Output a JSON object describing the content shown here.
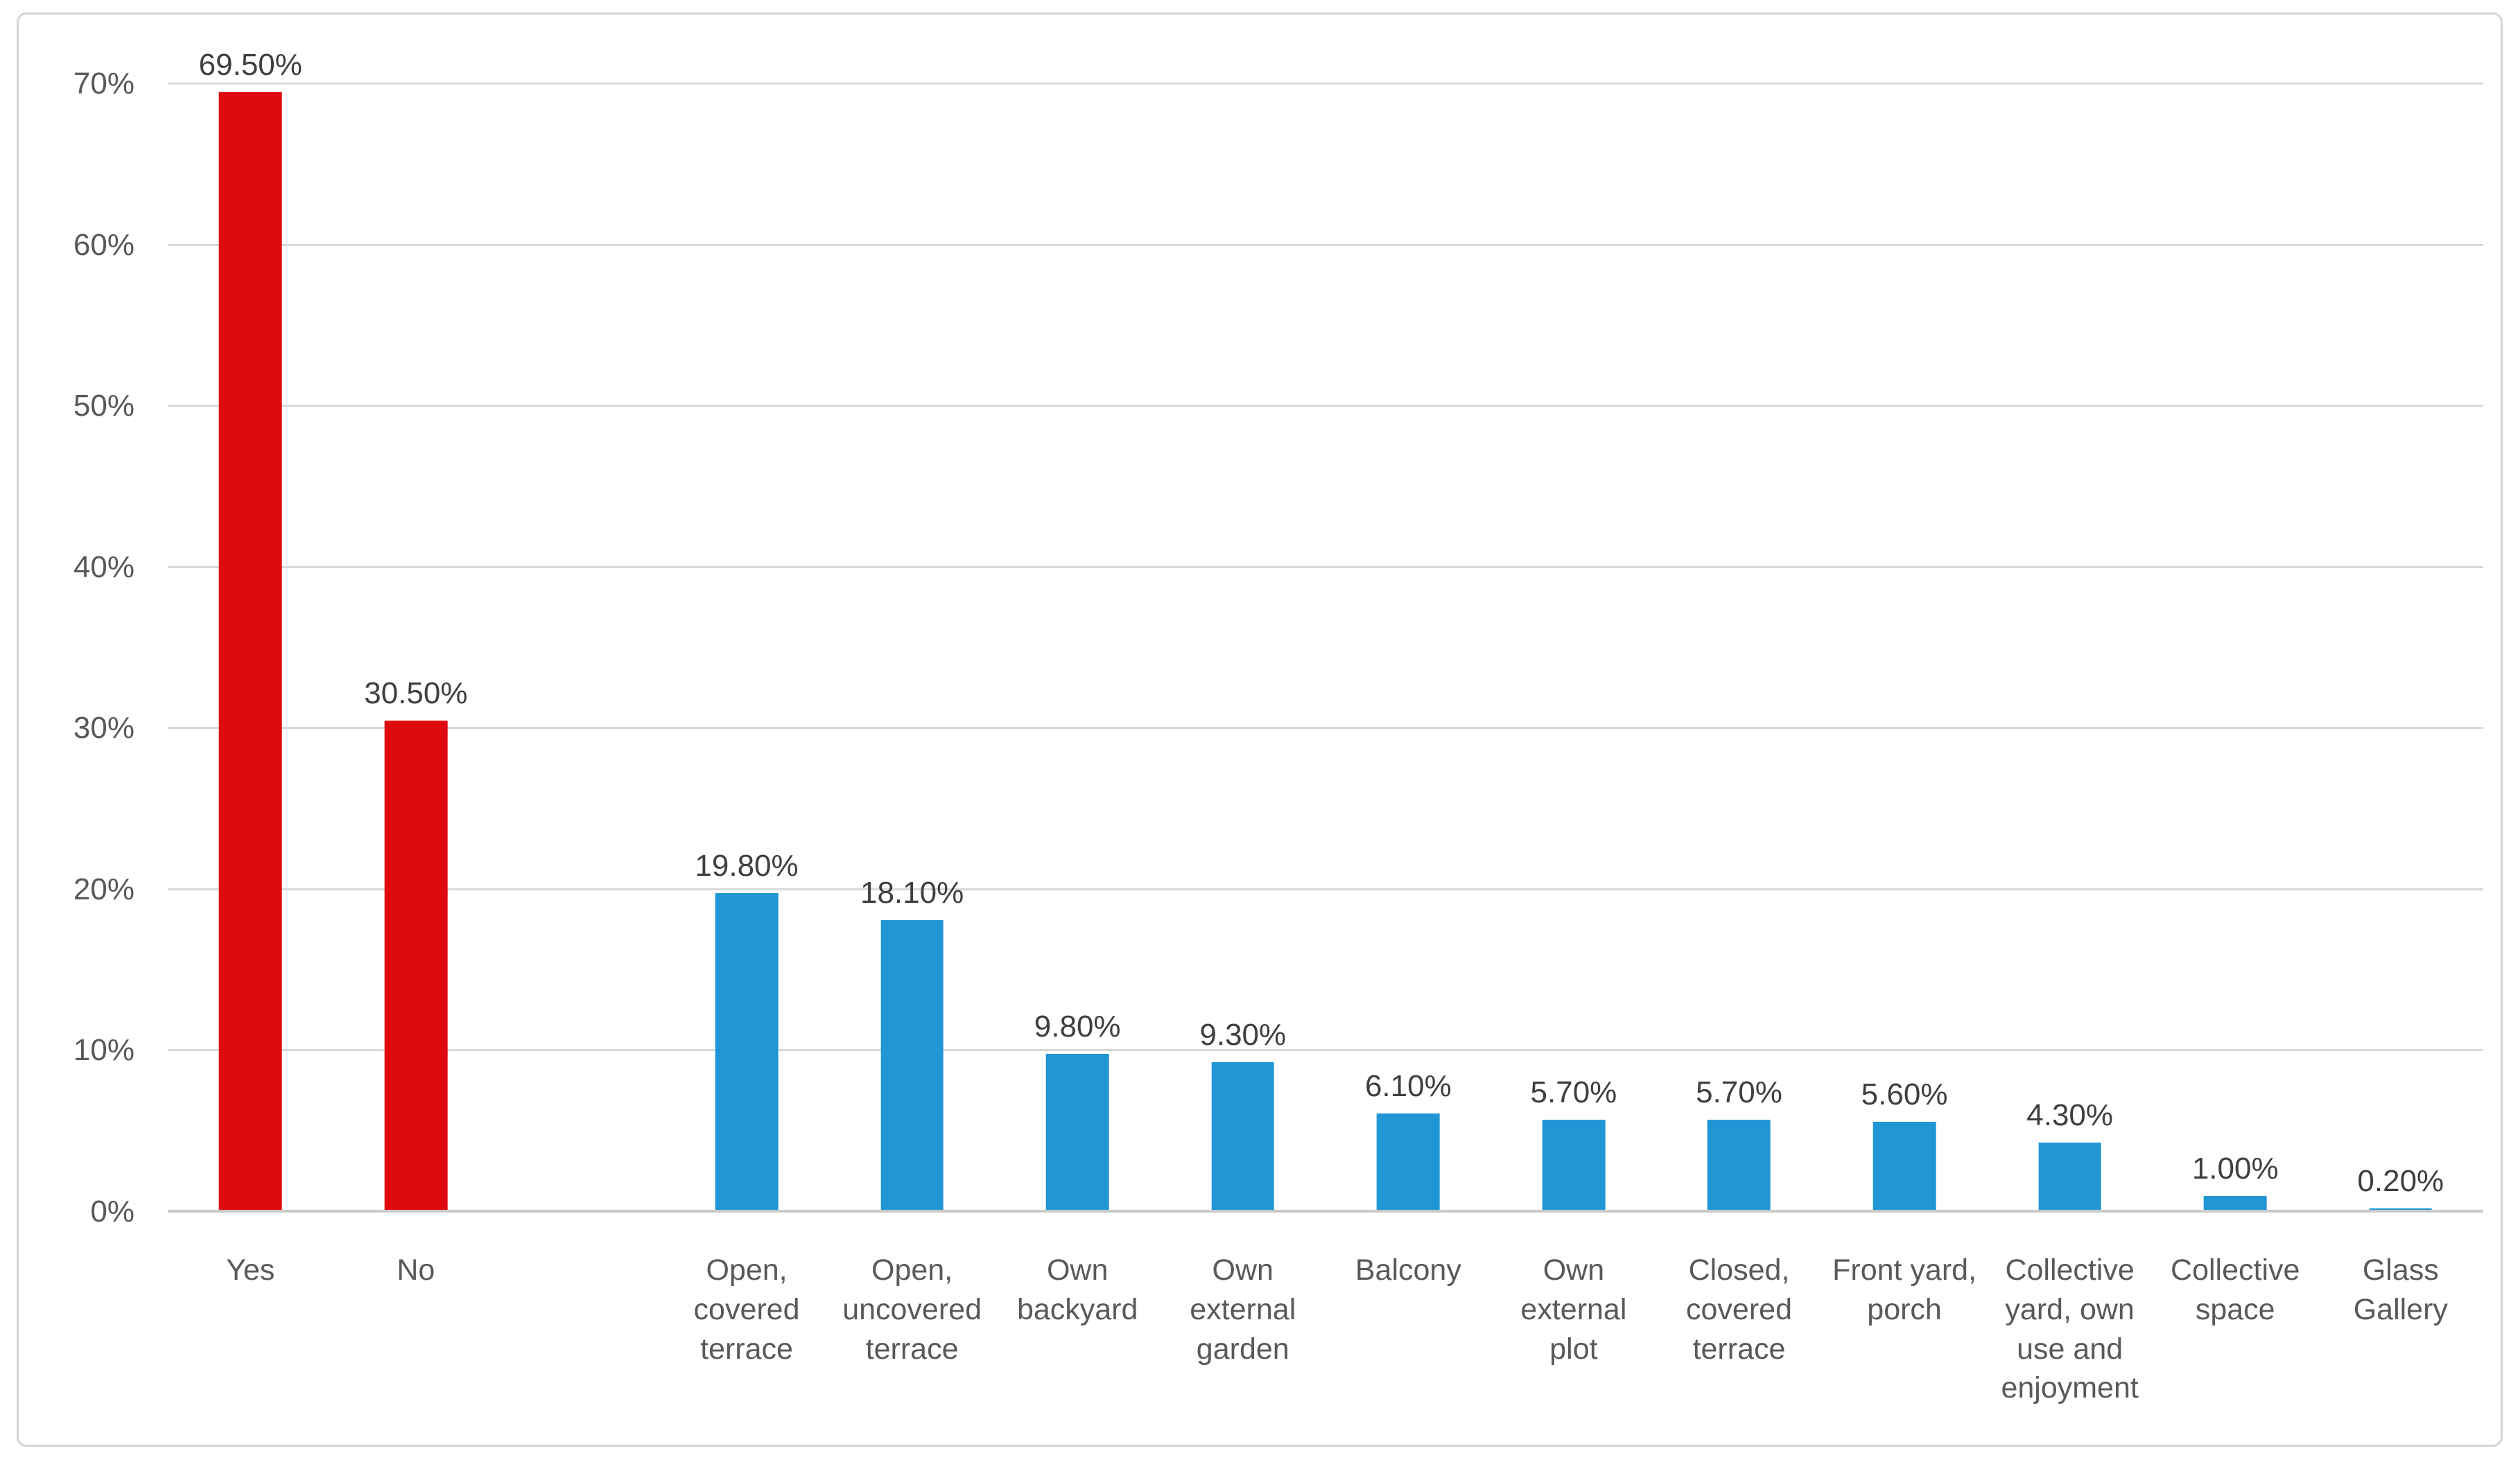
{
  "chart_data": {
    "type": "bar",
    "categories": [
      "Yes",
      "No",
      "Open,\ncovered\nterrace",
      "Open,\nuncovered\nterrace",
      "Own\nbackyard",
      "Own\nexternal\ngarden",
      "Balcony",
      "Own\nexternal\nplot",
      "Closed,\ncovered\nterrace",
      "Front yard,\nporch",
      "Collective\nyard, own\nuse and\nenjoyment",
      "Collective\nspace",
      "Glass\nGallery"
    ],
    "values": [
      69.5,
      30.5,
      19.8,
      18.1,
      9.8,
      9.3,
      6.1,
      5.7,
      5.7,
      5.6,
      4.3,
      1.0,
      0.2
    ],
    "value_labels": [
      "69.50%",
      "30.50%",
      "19.80%",
      "18.10%",
      "9.80%",
      "9.30%",
      "6.10%",
      "5.70%",
      "5.70%",
      "5.60%",
      "4.30%",
      "1.00%",
      "0.20%"
    ],
    "bar_colors": [
      "#df0a0d",
      "#df0a0d",
      "#2196d4",
      "#2196d4",
      "#2196d4",
      "#2196d4",
      "#2196d4",
      "#2196d4",
      "#2196d4",
      "#2196d4",
      "#2196d4",
      "#2196d4",
      "#2196d4"
    ],
    "y_axis": {
      "ticks": [
        "0%",
        "10%",
        "20%",
        "30%",
        "40%",
        "50%",
        "60%",
        "70%"
      ],
      "min": 0,
      "max": 70,
      "step": 10
    },
    "grid": true,
    "legend": false,
    "layout": {
      "empty_slot_after_index": 1,
      "gridline_color": "#d9d9d9",
      "axis_line_color": "#c9c9c9",
      "frame_border_color": "#d4d4d4",
      "tick_label_color": "#595959",
      "value_label_color": "#3f3f3f"
    }
  }
}
